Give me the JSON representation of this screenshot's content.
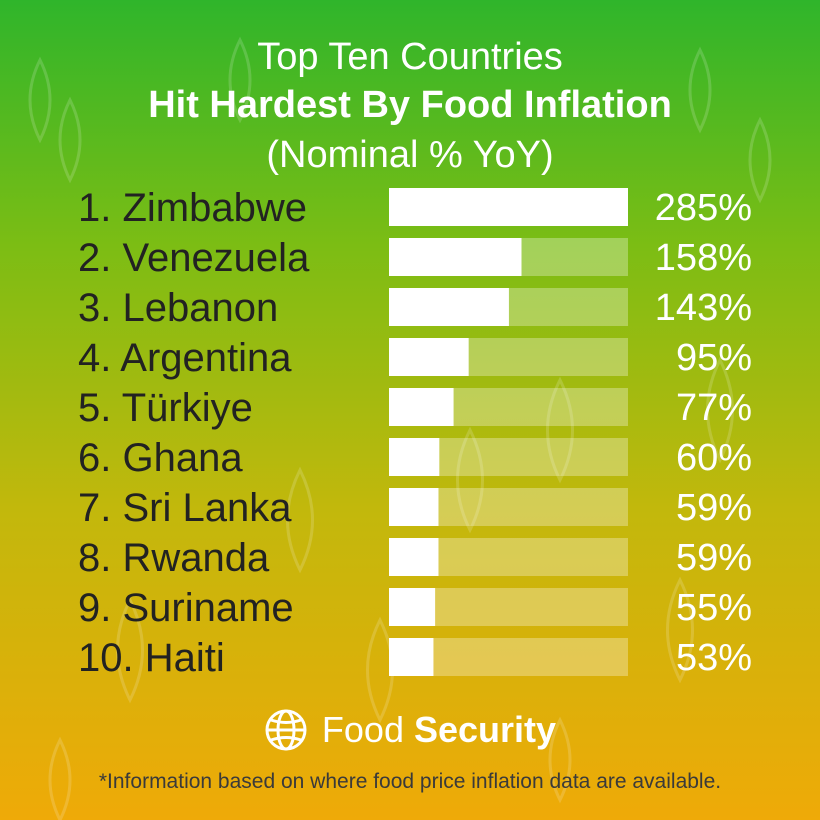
{
  "title_line1": "Top Ten Countries",
  "title_line2": "Hit Hardest By Food Inflation",
  "title_line3": "(Nominal % YoY)",
  "chart_data": {
    "type": "bar",
    "orientation": "horizontal",
    "categories": [
      "1. Zimbabwe",
      "2. Venezuela",
      "3. Lebanon",
      "4. Argentina",
      "5. Türkiye",
      "6. Ghana",
      "7. Sri Lanka",
      "8. Rwanda",
      "9. Suriname",
      "10. Haiti"
    ],
    "values": [
      285,
      158,
      143,
      95,
      77,
      60,
      59,
      59,
      55,
      53
    ],
    "value_labels": [
      "285%",
      "158%",
      "143%",
      "95%",
      "77%",
      "60%",
      "59%",
      "59%",
      "55%",
      "53%"
    ],
    "xlim": [
      0,
      285
    ],
    "grid": false,
    "bar_color": "#ffffff"
  },
  "brand": {
    "icon": "globe-icon",
    "light": "Food",
    "bold": "Security"
  },
  "footnote": "*Information based on where food price inflation data are available."
}
